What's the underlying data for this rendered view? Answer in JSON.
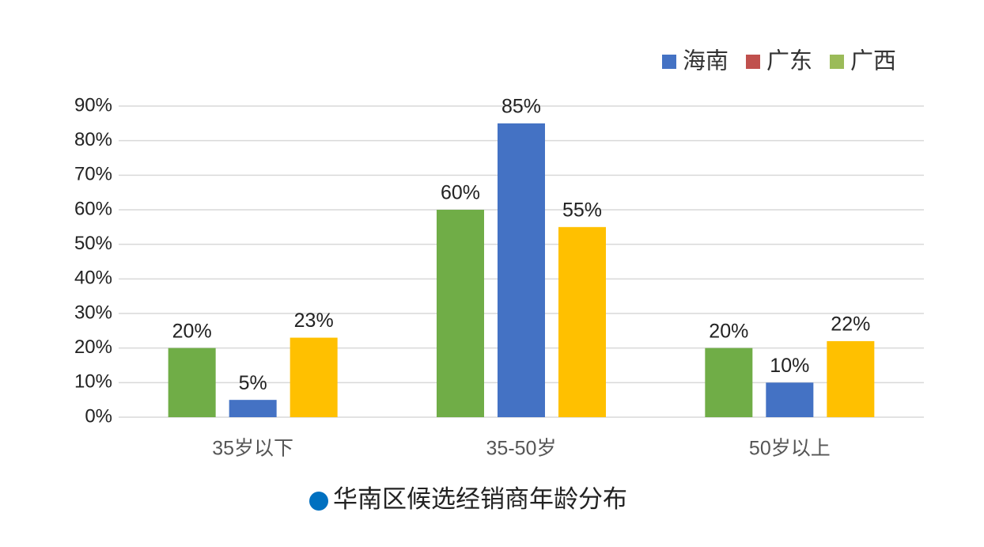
{
  "chart_data": {
    "type": "bar",
    "title": "华南区候选经销商年龄分布",
    "categories": [
      "35岁以下",
      "35-50岁",
      "50岁以上"
    ],
    "series": [
      {
        "color": "#70ad47",
        "values": [
          20,
          60,
          20
        ],
        "value_labels": [
          "20%",
          "60%",
          "20%"
        ]
      },
      {
        "color": "#4472c4",
        "values": [
          5,
          85,
          10
        ],
        "value_labels": [
          "5%",
          "85%",
          "10%"
        ]
      },
      {
        "color": "#ffc000",
        "values": [
          23,
          55,
          22
        ],
        "value_labels": [
          "23%",
          "55%",
          "22%"
        ]
      }
    ],
    "legend": {
      "position": "top-right",
      "items": [
        {
          "name": "海南",
          "color": "#4472c4"
        },
        {
          "name": "广东",
          "color": "#c0504d"
        },
        {
          "name": "广西",
          "color": "#9bbb59"
        }
      ]
    },
    "ylim": [
      0,
      90
    ],
    "yticks": [
      {
        "value": 0,
        "label": "0%"
      },
      {
        "value": 10,
        "label": "10%"
      },
      {
        "value": 20,
        "label": "20%"
      },
      {
        "value": 30,
        "label": "30%"
      },
      {
        "value": 40,
        "label": "40%"
      },
      {
        "value": 50,
        "label": "50%"
      },
      {
        "value": 60,
        "label": "60%"
      },
      {
        "value": 70,
        "label": "70%"
      },
      {
        "value": 80,
        "label": "80%"
      },
      {
        "value": 90,
        "label": "90%"
      }
    ],
    "grid": true
  }
}
